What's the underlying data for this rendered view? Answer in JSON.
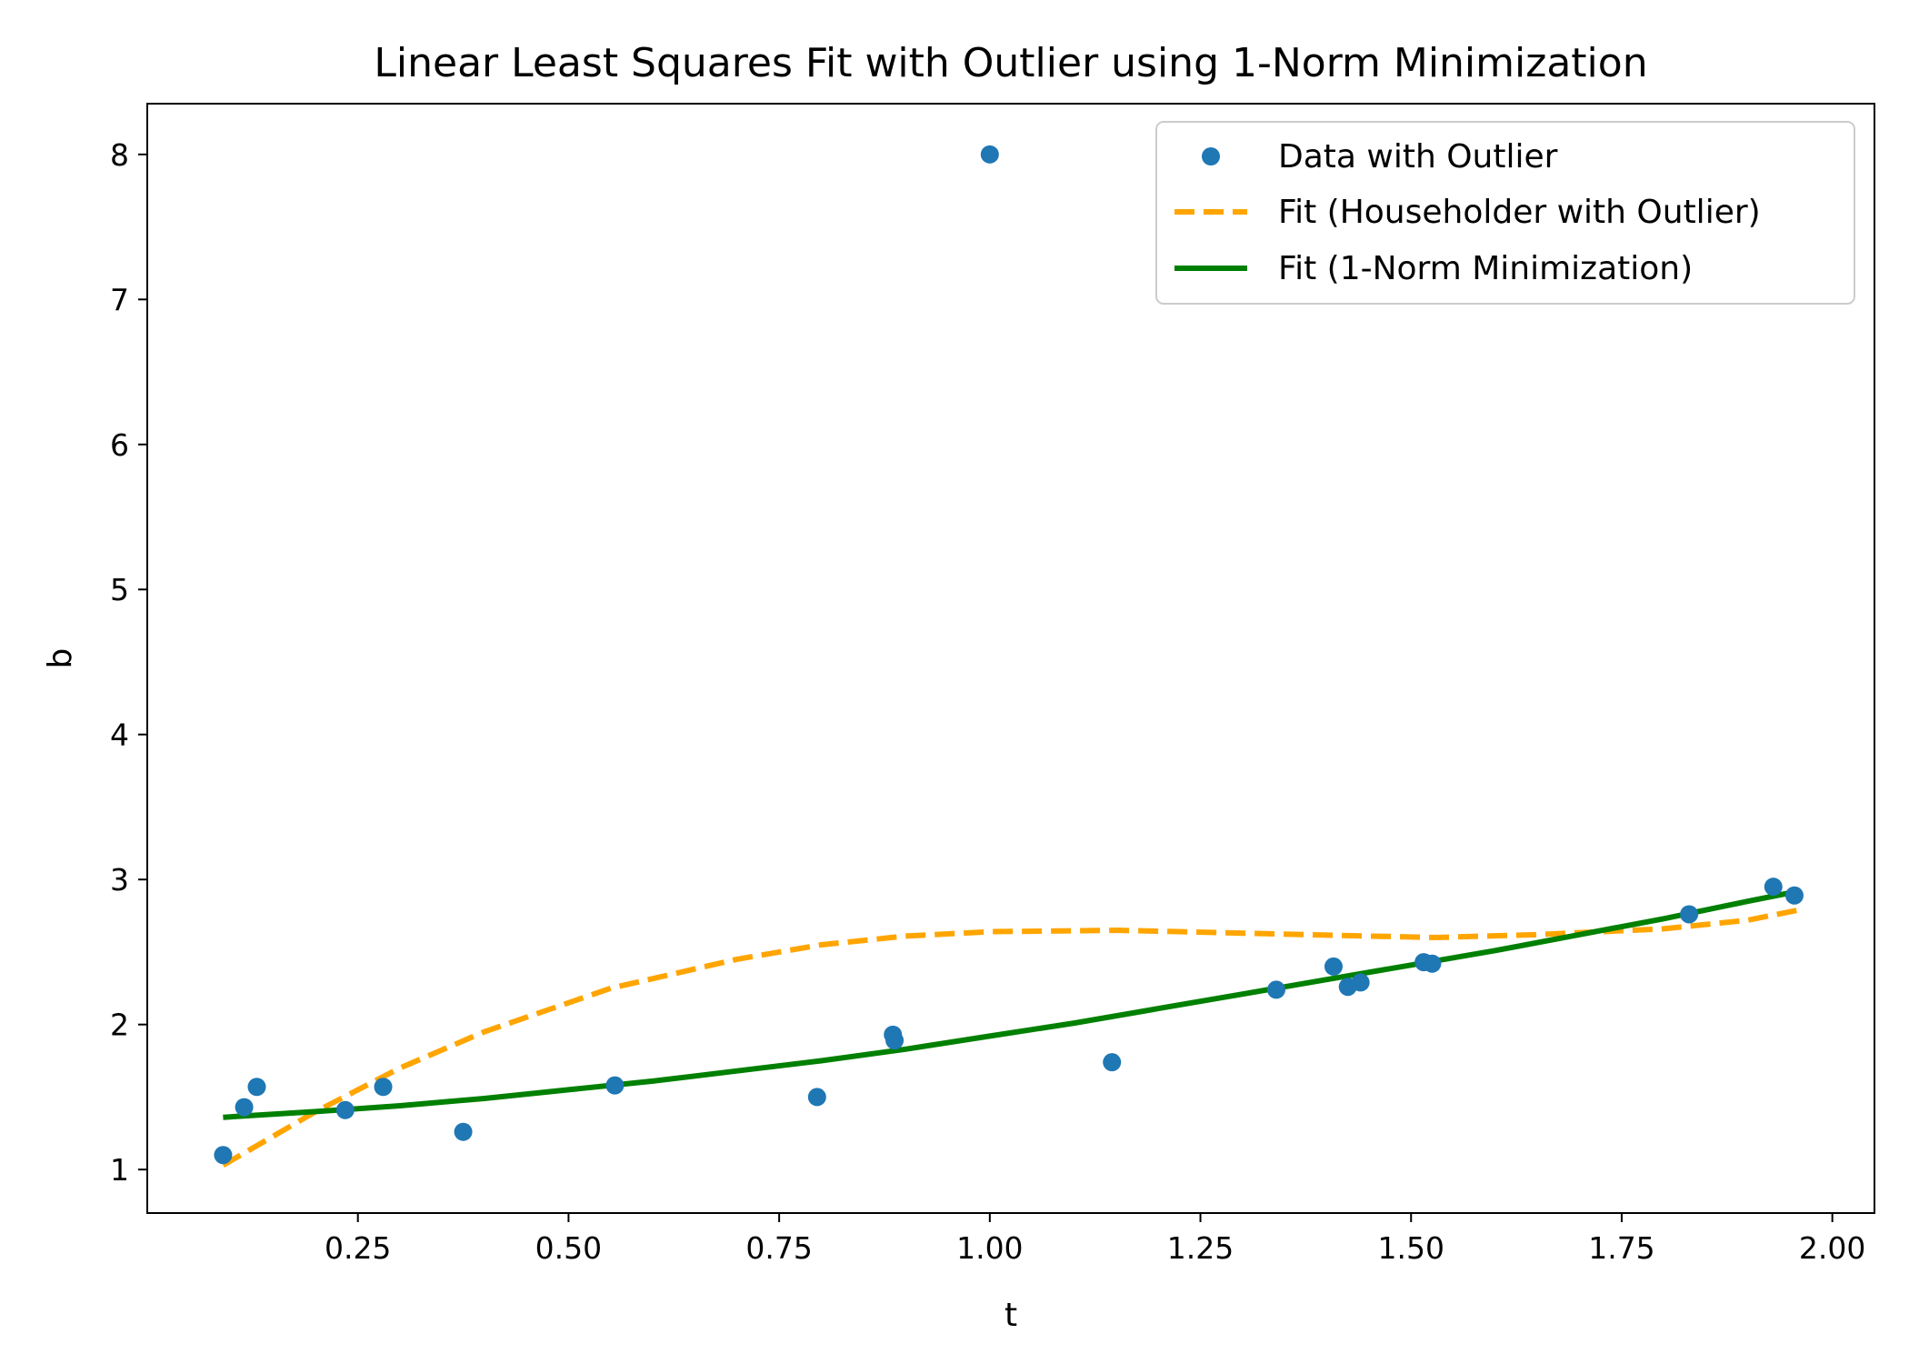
{
  "chart_data": {
    "type": "scatter",
    "title": "Linear Least Squares Fit with Outlier using 1-Norm Minimization",
    "xlabel": "t",
    "ylabel": "b",
    "xlim": [
      0.0,
      2.05
    ],
    "ylim": [
      0.7,
      8.35
    ],
    "xticks": [
      {
        "value": 0.25,
        "label": "0.25"
      },
      {
        "value": 0.5,
        "label": "0.50"
      },
      {
        "value": 0.75,
        "label": "0.75"
      },
      {
        "value": 1.0,
        "label": "1.00"
      },
      {
        "value": 1.25,
        "label": "1.25"
      },
      {
        "value": 1.5,
        "label": "1.50"
      },
      {
        "value": 1.75,
        "label": "1.75"
      },
      {
        "value": 2.0,
        "label": "2.00"
      }
    ],
    "yticks": [
      {
        "value": 1,
        "label": "1"
      },
      {
        "value": 2,
        "label": "2"
      },
      {
        "value": 3,
        "label": "3"
      },
      {
        "value": 4,
        "label": "4"
      },
      {
        "value": 5,
        "label": "5"
      },
      {
        "value": 6,
        "label": "6"
      },
      {
        "value": 7,
        "label": "7"
      },
      {
        "value": 8,
        "label": "8"
      }
    ],
    "grid": false,
    "legend_position": "top-right",
    "series": [
      {
        "name": "Data with Outlier",
        "kind": "scatter",
        "color": "#1f77b4",
        "x": [
          0.09,
          0.115,
          0.13,
          0.235,
          0.28,
          0.375,
          0.555,
          0.795,
          0.885,
          0.887,
          1.0,
          1.145,
          1.34,
          1.408,
          1.425,
          1.44,
          1.515,
          1.525,
          1.83,
          1.93,
          1.955
        ],
        "y": [
          1.1,
          1.43,
          1.57,
          1.41,
          1.57,
          1.26,
          1.58,
          1.5,
          1.93,
          1.89,
          8.0,
          1.74,
          2.24,
          2.4,
          2.26,
          2.29,
          2.43,
          2.42,
          2.76,
          2.95,
          2.89
        ]
      },
      {
        "name": "Fit (Householder with Outlier)",
        "kind": "line",
        "style": "dashed",
        "color": "#ffa500",
        "x": [
          0.09,
          0.2,
          0.3,
          0.4,
          0.55,
          0.7,
          0.8,
          0.9,
          1.0,
          1.15,
          1.3,
          1.45,
          1.53,
          1.65,
          1.8,
          1.9,
          1.96
        ],
        "y": [
          1.03,
          1.4,
          1.7,
          1.95,
          2.25,
          2.45,
          2.55,
          2.61,
          2.64,
          2.65,
          2.63,
          2.61,
          2.6,
          2.62,
          2.66,
          2.72,
          2.79
        ]
      },
      {
        "name": "Fit (1-Norm Minimization)",
        "kind": "line",
        "style": "solid",
        "color": "#008000",
        "x": [
          0.09,
          0.2,
          0.3,
          0.4,
          0.5,
          0.6,
          0.7,
          0.8,
          0.9,
          1.0,
          1.1,
          1.2,
          1.3,
          1.4,
          1.5,
          1.6,
          1.7,
          1.8,
          1.9,
          1.96
        ],
        "y": [
          1.36,
          1.4,
          1.44,
          1.49,
          1.55,
          1.61,
          1.68,
          1.75,
          1.83,
          1.92,
          2.01,
          2.11,
          2.21,
          2.31,
          2.41,
          2.51,
          2.62,
          2.73,
          2.85,
          2.92
        ]
      }
    ]
  }
}
